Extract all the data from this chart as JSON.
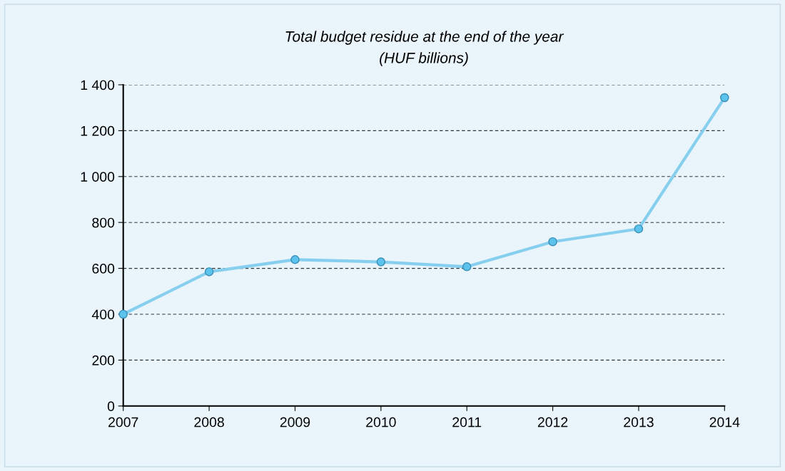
{
  "chart_data": {
    "type": "line",
    "title": "Total budget residue at the end of the year\n(HUF billions)",
    "x": [
      2007,
      2008,
      2009,
      2010,
      2011,
      2012,
      2013,
      2014
    ],
    "series": [
      {
        "color": "#87cfef",
        "values": [
          400,
          585,
          638,
          628,
          607,
          716,
          772,
          1344
        ]
      }
    ],
    "marker": "circle",
    "line_style": "solid",
    "xlim": [
      2007,
      2014
    ],
    "xticks": [
      2007,
      2008,
      2009,
      2010,
      2011,
      2012,
      2013,
      2014
    ],
    "ylim": [
      0,
      1400
    ],
    "yticks": [
      0,
      200,
      400,
      600,
      800,
      {
        "value": 1000,
        "label": "1 000"
      },
      {
        "value": 1200,
        "label": "1 200"
      },
      {
        "value": 1400,
        "label": "1 400"
      }
    ],
    "grid": "y",
    "legend": false
  }
}
